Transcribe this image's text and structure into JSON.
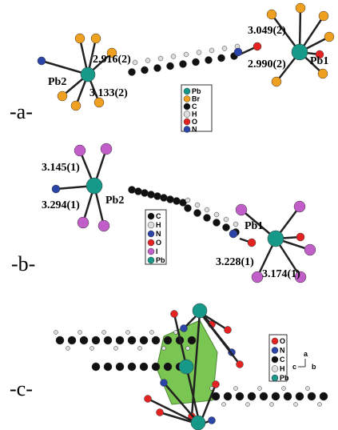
{
  "panels": [
    {
      "label": "-a-",
      "atom_labels": [
        "Pb2",
        "Pb1"
      ],
      "distances": [
        "2.916(2)",
        "3.133(2)",
        "3.049(2)",
        "2.990(2)"
      ],
      "legend": [
        "Pb",
        "Br",
        "C",
        "H",
        "O",
        "N"
      ]
    },
    {
      "label": "-b-",
      "atom_labels": [
        "Pb2",
        "Pb1"
      ],
      "distances": [
        "3.145(1)",
        "3.294(1)",
        "3.228(1)",
        "3.174(1)"
      ],
      "legend": [
        "C",
        "H",
        "N",
        "O",
        "I",
        "Pb"
      ]
    },
    {
      "label": "-c-",
      "legend": [
        "O",
        "N",
        "C",
        "H",
        "Pb"
      ],
      "axes": [
        "a",
        "c",
        "b"
      ]
    }
  ]
}
